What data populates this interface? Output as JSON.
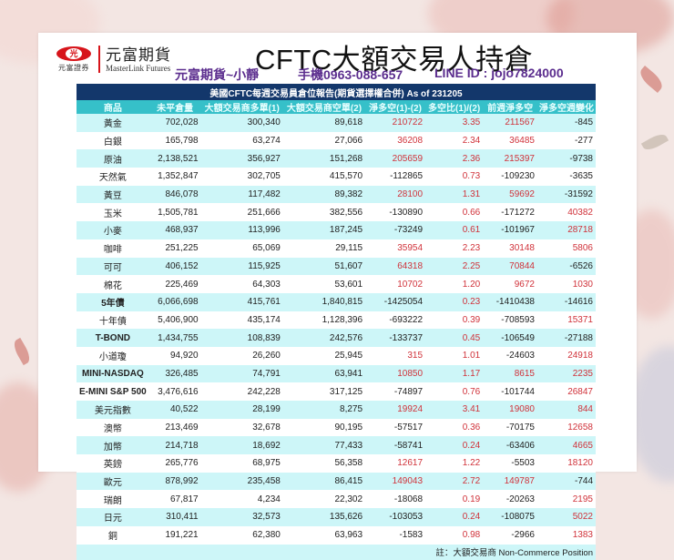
{
  "logo": {
    "mark_glyph": "光",
    "sub_text": "元富證券",
    "name_cn": "元富期貨",
    "name_en": "MasterLink Futures"
  },
  "title": "CFTC大額交易人持倉",
  "contact": {
    "name": "元富期貨~小靜",
    "phone": "手機0963-088-657",
    "line": "LINE ID : jojo7824000"
  },
  "table": {
    "banner": "美國CFTC每週交易員倉位報告(期貨選擇權合併) As of  231205",
    "headers": [
      "商品",
      "未平倉量",
      "大額交易商多單(1)",
      "大額交易商空單(2)",
      "淨多空(1)-(2)",
      "多空比(1)/(2)",
      "前週淨多空",
      "淨多空週變化"
    ],
    "rows": [
      {
        "name": "黃金",
        "oi": "702,028",
        "long": "300,340",
        "short": "89,618",
        "net": "210722",
        "ratio": "3.35",
        "prev": "211567",
        "chg": "-845"
      },
      {
        "name": "白銀",
        "oi": "165,798",
        "long": "63,274",
        "short": "27,066",
        "net": "36208",
        "ratio": "2.34",
        "prev": "36485",
        "chg": "-277"
      },
      {
        "name": "原油",
        "oi": "2,138,521",
        "long": "356,927",
        "short": "151,268",
        "net": "205659",
        "ratio": "2.36",
        "prev": "215397",
        "chg": "-9738"
      },
      {
        "name": "天然氣",
        "oi": "1,352,847",
        "long": "302,705",
        "short": "415,570",
        "net": "-112865",
        "ratio": "0.73",
        "prev": "-109230",
        "chg": "-3635"
      },
      {
        "name": "黃豆",
        "oi": "846,078",
        "long": "117,482",
        "short": "89,382",
        "net": "28100",
        "ratio": "1.31",
        "prev": "59692",
        "chg": "-31592"
      },
      {
        "name": "玉米",
        "oi": "1,505,781",
        "long": "251,666",
        "short": "382,556",
        "net": "-130890",
        "ratio": "0.66",
        "prev": "-171272",
        "chg": "40382"
      },
      {
        "name": "小麥",
        "oi": "468,937",
        "long": "113,996",
        "short": "187,245",
        "net": "-73249",
        "ratio": "0.61",
        "prev": "-101967",
        "chg": "28718"
      },
      {
        "name": "咖啡",
        "oi": "251,225",
        "long": "65,069",
        "short": "29,115",
        "net": "35954",
        "ratio": "2.23",
        "prev": "30148",
        "chg": "5806"
      },
      {
        "name": "可可",
        "oi": "406,152",
        "long": "115,925",
        "short": "51,607",
        "net": "64318",
        "ratio": "2.25",
        "prev": "70844",
        "chg": "-6526"
      },
      {
        "name": "棉花",
        "oi": "225,469",
        "long": "64,303",
        "short": "53,601",
        "net": "10702",
        "ratio": "1.20",
        "prev": "9672",
        "chg": "1030"
      },
      {
        "name": "5年債",
        "oi": "6,066,698",
        "long": "415,761",
        "short": "1,840,815",
        "net": "-1425054",
        "ratio": "0.23",
        "prev": "-1410438",
        "chg": "-14616",
        "bold": true
      },
      {
        "name": "十年債",
        "oi": "5,406,900",
        "long": "435,174",
        "short": "1,128,396",
        "net": "-693222",
        "ratio": "0.39",
        "prev": "-708593",
        "chg": "15371"
      },
      {
        "name": "T-BOND",
        "oi": "1,434,755",
        "long": "108,839",
        "short": "242,576",
        "net": "-133737",
        "ratio": "0.45",
        "prev": "-106549",
        "chg": "-27188",
        "bold": true
      },
      {
        "name": "小道瓊",
        "oi": "94,920",
        "long": "26,260",
        "short": "25,945",
        "net": "315",
        "ratio": "1.01",
        "prev": "-24603",
        "chg": "24918"
      },
      {
        "name": "MINI-NASDAQ",
        "oi": "326,485",
        "long": "74,791",
        "short": "63,941",
        "net": "10850",
        "ratio": "1.17",
        "prev": "8615",
        "chg": "2235",
        "bold": true
      },
      {
        "name": "E-MINI S&P 500",
        "oi": "3,476,616",
        "long": "242,228",
        "short": "317,125",
        "net": "-74897",
        "ratio": "0.76",
        "prev": "-101744",
        "chg": "26847",
        "bold": true
      },
      {
        "name": "美元指數",
        "oi": "40,522",
        "long": "28,199",
        "short": "8,275",
        "net": "19924",
        "ratio": "3.41",
        "prev": "19080",
        "chg": "844"
      },
      {
        "name": "澳幣",
        "oi": "213,469",
        "long": "32,678",
        "short": "90,195",
        "net": "-57517",
        "ratio": "0.36",
        "prev": "-70175",
        "chg": "12658"
      },
      {
        "name": "加幣",
        "oi": "214,718",
        "long": "18,692",
        "short": "77,433",
        "net": "-58741",
        "ratio": "0.24",
        "prev": "-63406",
        "chg": "4665"
      },
      {
        "name": "英鎊",
        "oi": "265,776",
        "long": "68,975",
        "short": "56,358",
        "net": "12617",
        "ratio": "1.22",
        "prev": "-5503",
        "chg": "18120"
      },
      {
        "name": "歐元",
        "oi": "878,992",
        "long": "235,458",
        "short": "86,415",
        "net": "149043",
        "ratio": "2.72",
        "prev": "149787",
        "chg": "-744"
      },
      {
        "name": "瑞朗",
        "oi": "67,817",
        "long": "4,234",
        "short": "22,302",
        "net": "-18068",
        "ratio": "0.19",
        "prev": "-20263",
        "chg": "2195"
      },
      {
        "name": "日元",
        "oi": "310,411",
        "long": "32,573",
        "short": "135,626",
        "net": "-103053",
        "ratio": "0.24",
        "prev": "-108075",
        "chg": "5022"
      },
      {
        "name": "銅",
        "oi": "191,221",
        "long": "62,380",
        "short": "63,963",
        "net": "-1583",
        "ratio": "0.98",
        "prev": "-2966",
        "chg": "1383"
      }
    ],
    "note": "註：大額交易商 Non-Commerce Position"
  },
  "colors": {
    "banner_bg": "#13376b",
    "header_bg": "#36c0c9",
    "row_alt_bg": "#cdf6f8",
    "positive_red": "#d0323a",
    "contact_purple": "#5b2d8e",
    "logo_red": "#d7141a"
  }
}
